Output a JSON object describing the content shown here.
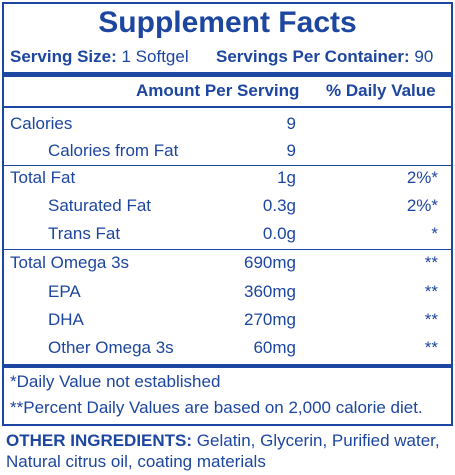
{
  "label": {
    "title": "Supplement Facts",
    "serving_size_label": "Serving Size:",
    "serving_size": "1 Softgel",
    "servings_label": "Servings Per Container:",
    "servings": "90",
    "header": {
      "amount": "Amount Per Serving",
      "dv": "% Daily Value"
    },
    "rows": [
      [
        "Calories",
        "9",
        ""
      ],
      [
        "Calories from Fat",
        "9",
        ""
      ],
      [
        "Total Fat",
        "1g",
        "2%*"
      ],
      [
        "Saturated Fat",
        "0.3g",
        "2%*"
      ],
      [
        "Trans Fat",
        "0.0g",
        "*"
      ],
      [
        "Total Omega 3s",
        "690mg",
        "**"
      ],
      [
        "EPA",
        "360mg",
        "**"
      ],
      [
        "DHA",
        "270mg",
        "**"
      ],
      [
        "Other Omega 3s",
        "60mg",
        "**"
      ]
    ],
    "footnotes": [
      "*Daily Value not established",
      "**Percent Daily Values are based on 2,000 calorie diet."
    ]
  },
  "ingredients": {
    "label": "OTHER INGREDIENTS:",
    "text": "Gelatin, Glycerin, Purified water, Natural citrus oil, coating materials"
  }
}
